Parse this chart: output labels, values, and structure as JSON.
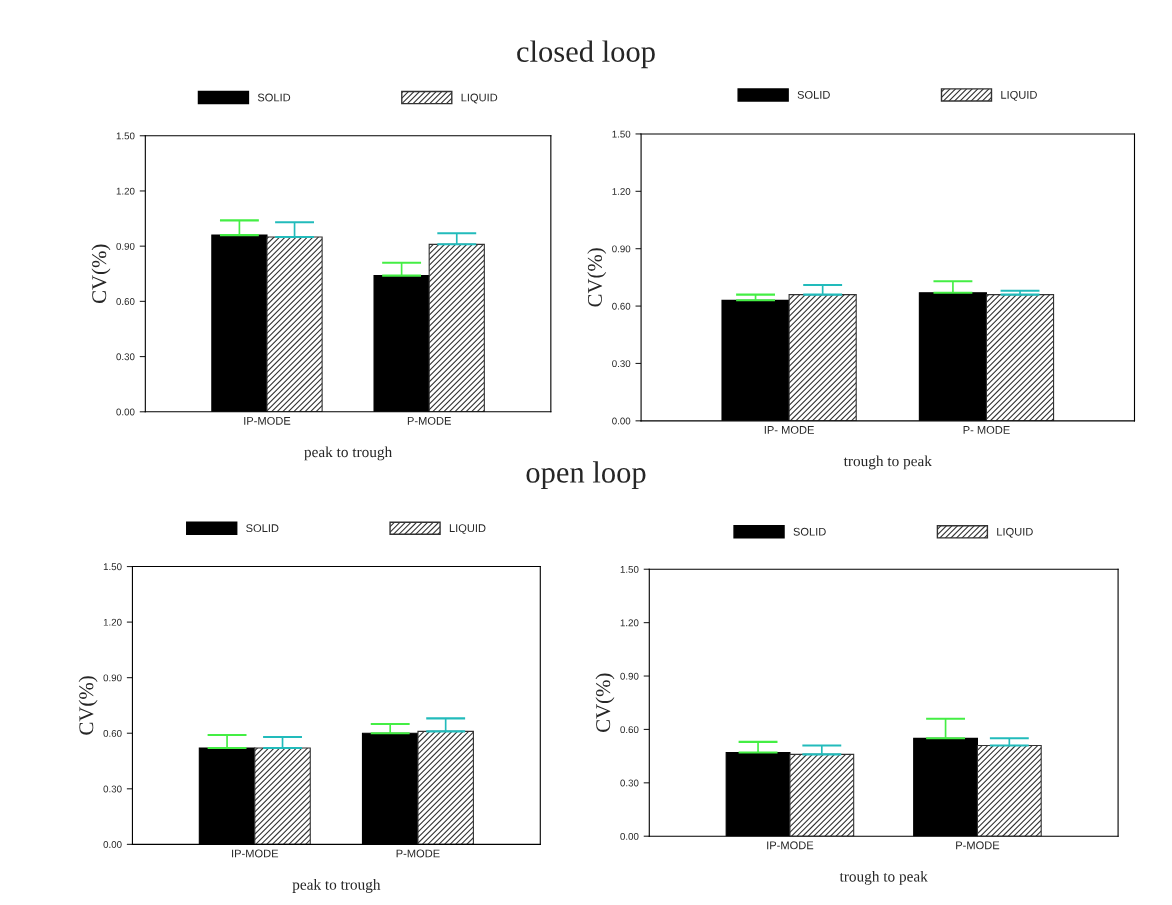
{
  "chart_data": [
    {
      "type": "bar",
      "title": "closed loop",
      "xlabel": "peak to trough",
      "ylabel": "CV(%)",
      "categories": [
        "IP-MODE",
        "P-MODE"
      ],
      "legend": "top",
      "ylim": [
        0,
        1.5
      ],
      "yticks": [
        {
          "value": 0,
          "label": "0.00"
        },
        {
          "value": 0.3,
          "label": "0.30"
        },
        {
          "value": 0.6,
          "label": "0.60"
        },
        {
          "value": 0.9,
          "label": "0.90"
        },
        {
          "value": 1.2,
          "label": "1.20"
        },
        {
          "value": 1.5,
          "label": "1.50"
        }
      ],
      "series": [
        {
          "name": "SOLID",
          "color": "#000000",
          "values": [
            0.96,
            0.74
          ],
          "errors": [
            [
              0.96,
              1.04
            ],
            [
              0.74,
              0.81
            ]
          ]
        },
        {
          "name": "LIQUID",
          "color": "#333333",
          "values": [
            0.95,
            0.91
          ],
          "errors": [
            [
              0.95,
              1.03
            ],
            [
              0.91,
              0.97
            ]
          ]
        }
      ]
    },
    {
      "type": "bar",
      "xlabel": "trough to peak",
      "ylabel": "CV(%)",
      "categories": [
        "IP- MODE",
        "P- MODE"
      ],
      "legend": "top",
      "ylim": [
        0,
        1.5
      ],
      "yticks": [
        {
          "value": 0,
          "label": "0.00"
        },
        {
          "value": 0.3,
          "label": "0.30"
        },
        {
          "value": 0.6,
          "label": "0.60"
        },
        {
          "value": 0.9,
          "label": "0.90"
        },
        {
          "value": 1.2,
          "label": "1.20"
        },
        {
          "value": 1.5,
          "label": "1.50"
        }
      ],
      "series": [
        {
          "name": "SOLID",
          "color": "#000000",
          "values": [
            0.63,
            0.67
          ],
          "errors": [
            [
              0.63,
              0.66
            ],
            [
              0.67,
              0.73
            ]
          ]
        },
        {
          "name": "LIQUID",
          "color": "#333333",
          "values": [
            0.66,
            0.66
          ],
          "errors": [
            [
              0.66,
              0.71
            ],
            [
              0.66,
              0.68
            ]
          ]
        }
      ]
    },
    {
      "type": "bar",
      "title": "open loop",
      "xlabel": "peak to trough",
      "ylabel": "CV(%)",
      "categories": [
        "IP-MODE",
        "P-MODE"
      ],
      "legend": "top",
      "ylim": [
        0,
        1.5
      ],
      "yticks": [
        {
          "value": 0,
          "label": "0.00"
        },
        {
          "value": 0.3,
          "label": "0.30"
        },
        {
          "value": 0.6,
          "label": "0.60"
        },
        {
          "value": 0.9,
          "label": "0.90"
        },
        {
          "value": 1.2,
          "label": "1.20"
        },
        {
          "value": 1.5,
          "label": "1.50"
        }
      ],
      "series": [
        {
          "name": "SOLID",
          "color": "#000000",
          "values": [
            0.52,
            0.6
          ],
          "errors": [
            [
              0.52,
              0.59
            ],
            [
              0.6,
              0.65
            ]
          ]
        },
        {
          "name": "LIQUID",
          "color": "#333333",
          "values": [
            0.52,
            0.61
          ],
          "errors": [
            [
              0.52,
              0.58
            ],
            [
              0.61,
              0.68
            ]
          ]
        }
      ]
    },
    {
      "type": "bar",
      "xlabel": "trough to peak",
      "ylabel": "CV(%)",
      "categories": [
        "IP-MODE",
        "P-MODE"
      ],
      "legend": "top",
      "ylim": [
        0,
        1.5
      ],
      "yticks": [
        {
          "value": 0,
          "label": "0.00"
        },
        {
          "value": 0.3,
          "label": "0.30"
        },
        {
          "value": 0.6,
          "label": "0.60"
        },
        {
          "value": 0.9,
          "label": "0.90"
        },
        {
          "value": 1.2,
          "label": "1.20"
        },
        {
          "value": 1.5,
          "label": "1.50"
        }
      ],
      "series": [
        {
          "name": "SOLID",
          "color": "#000000",
          "values": [
            0.47,
            0.55
          ],
          "errors": [
            [
              0.47,
              0.53
            ],
            [
              0.55,
              0.66
            ]
          ]
        },
        {
          "name": "LIQUID",
          "color": "#333333",
          "values": [
            0.46,
            0.51
          ],
          "errors": [
            [
              0.46,
              0.51
            ],
            [
              0.51,
              0.55
            ]
          ]
        }
      ]
    }
  ]
}
